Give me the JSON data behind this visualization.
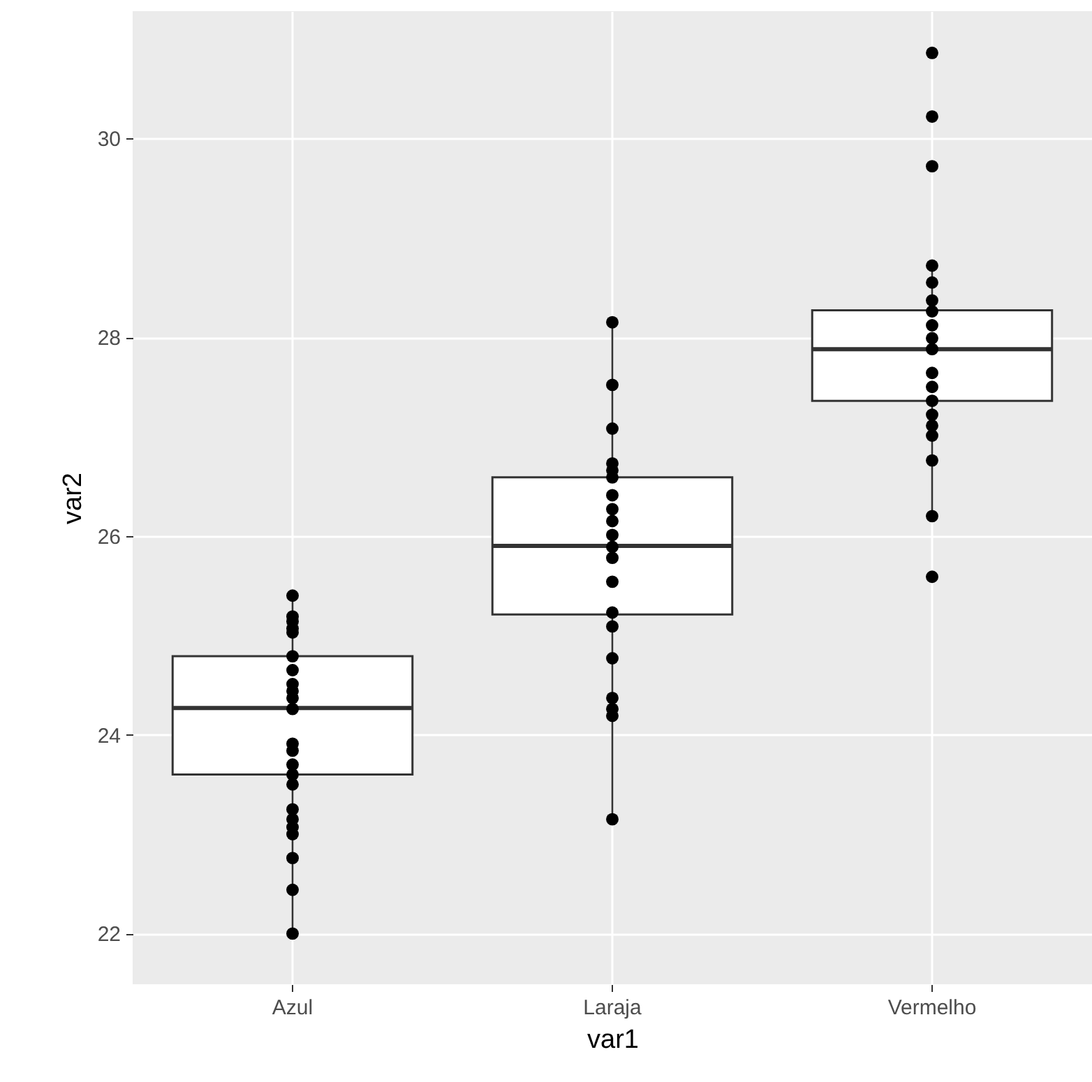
{
  "chart_data": {
    "type": "box",
    "xlabel": "var1",
    "ylabel": "var2",
    "categories": [
      "Azul",
      "Laraja",
      "Vermelho"
    ],
    "boxes": [
      {
        "low": 22.0,
        "q1": 23.6,
        "median": 24.27,
        "q3": 24.79,
        "high": 25.4
      },
      {
        "low": 23.15,
        "q1": 25.21,
        "median": 25.9,
        "q3": 26.59,
        "high": 28.15
      },
      {
        "low": 26.2,
        "q1": 27.36,
        "median": 27.88,
        "q3": 28.27,
        "high": 28.72
      }
    ],
    "series": [
      {
        "type": "scatter",
        "color": "#000000",
        "x": [
          "Azul",
          "Azul",
          "Azul",
          "Azul",
          "Azul",
          "Azul",
          "Azul",
          "Azul",
          "Azul",
          "Azul",
          "Azul",
          "Azul",
          "Azul",
          "Azul",
          "Azul",
          "Azul",
          "Azul",
          "Azul",
          "Azul",
          "Azul",
          "Azul",
          "Azul",
          "Azul",
          "Laraja",
          "Laraja",
          "Laraja",
          "Laraja",
          "Laraja",
          "Laraja",
          "Laraja",
          "Laraja",
          "Laraja",
          "Laraja",
          "Laraja",
          "Laraja",
          "Laraja",
          "Laraja",
          "Laraja",
          "Laraja",
          "Laraja",
          "Laraja",
          "Laraja",
          "Laraja",
          "Vermelho",
          "Vermelho",
          "Vermelho",
          "Vermelho",
          "Vermelho",
          "Vermelho",
          "Vermelho",
          "Vermelho",
          "Vermelho",
          "Vermelho",
          "Vermelho",
          "Vermelho",
          "Vermelho",
          "Vermelho",
          "Vermelho",
          "Vermelho",
          "Vermelho",
          "Vermelho",
          "Vermelho"
        ],
        "values": [
          25.4,
          25.19,
          25.14,
          25.07,
          25.03,
          24.79,
          24.65,
          24.51,
          24.44,
          24.37,
          24.26,
          23.91,
          23.84,
          23.7,
          23.6,
          23.5,
          23.25,
          23.15,
          23.07,
          23.0,
          22.76,
          22.44,
          22.0,
          28.15,
          27.52,
          27.08,
          26.73,
          26.66,
          26.59,
          26.41,
          26.27,
          26.15,
          26.01,
          25.89,
          25.78,
          25.54,
          25.23,
          25.09,
          24.77,
          24.37,
          24.26,
          24.19,
          23.15,
          30.86,
          30.22,
          29.72,
          28.72,
          28.55,
          28.37,
          28.26,
          28.12,
          27.99,
          27.88,
          27.64,
          27.5,
          27.36,
          27.22,
          27.11,
          27.01,
          26.76,
          26.2,
          25.59
        ]
      }
    ],
    "ylim": [
      21.49,
      31.28
    ],
    "yticks": [
      22,
      24,
      26,
      28,
      30
    ],
    "grid": true
  }
}
